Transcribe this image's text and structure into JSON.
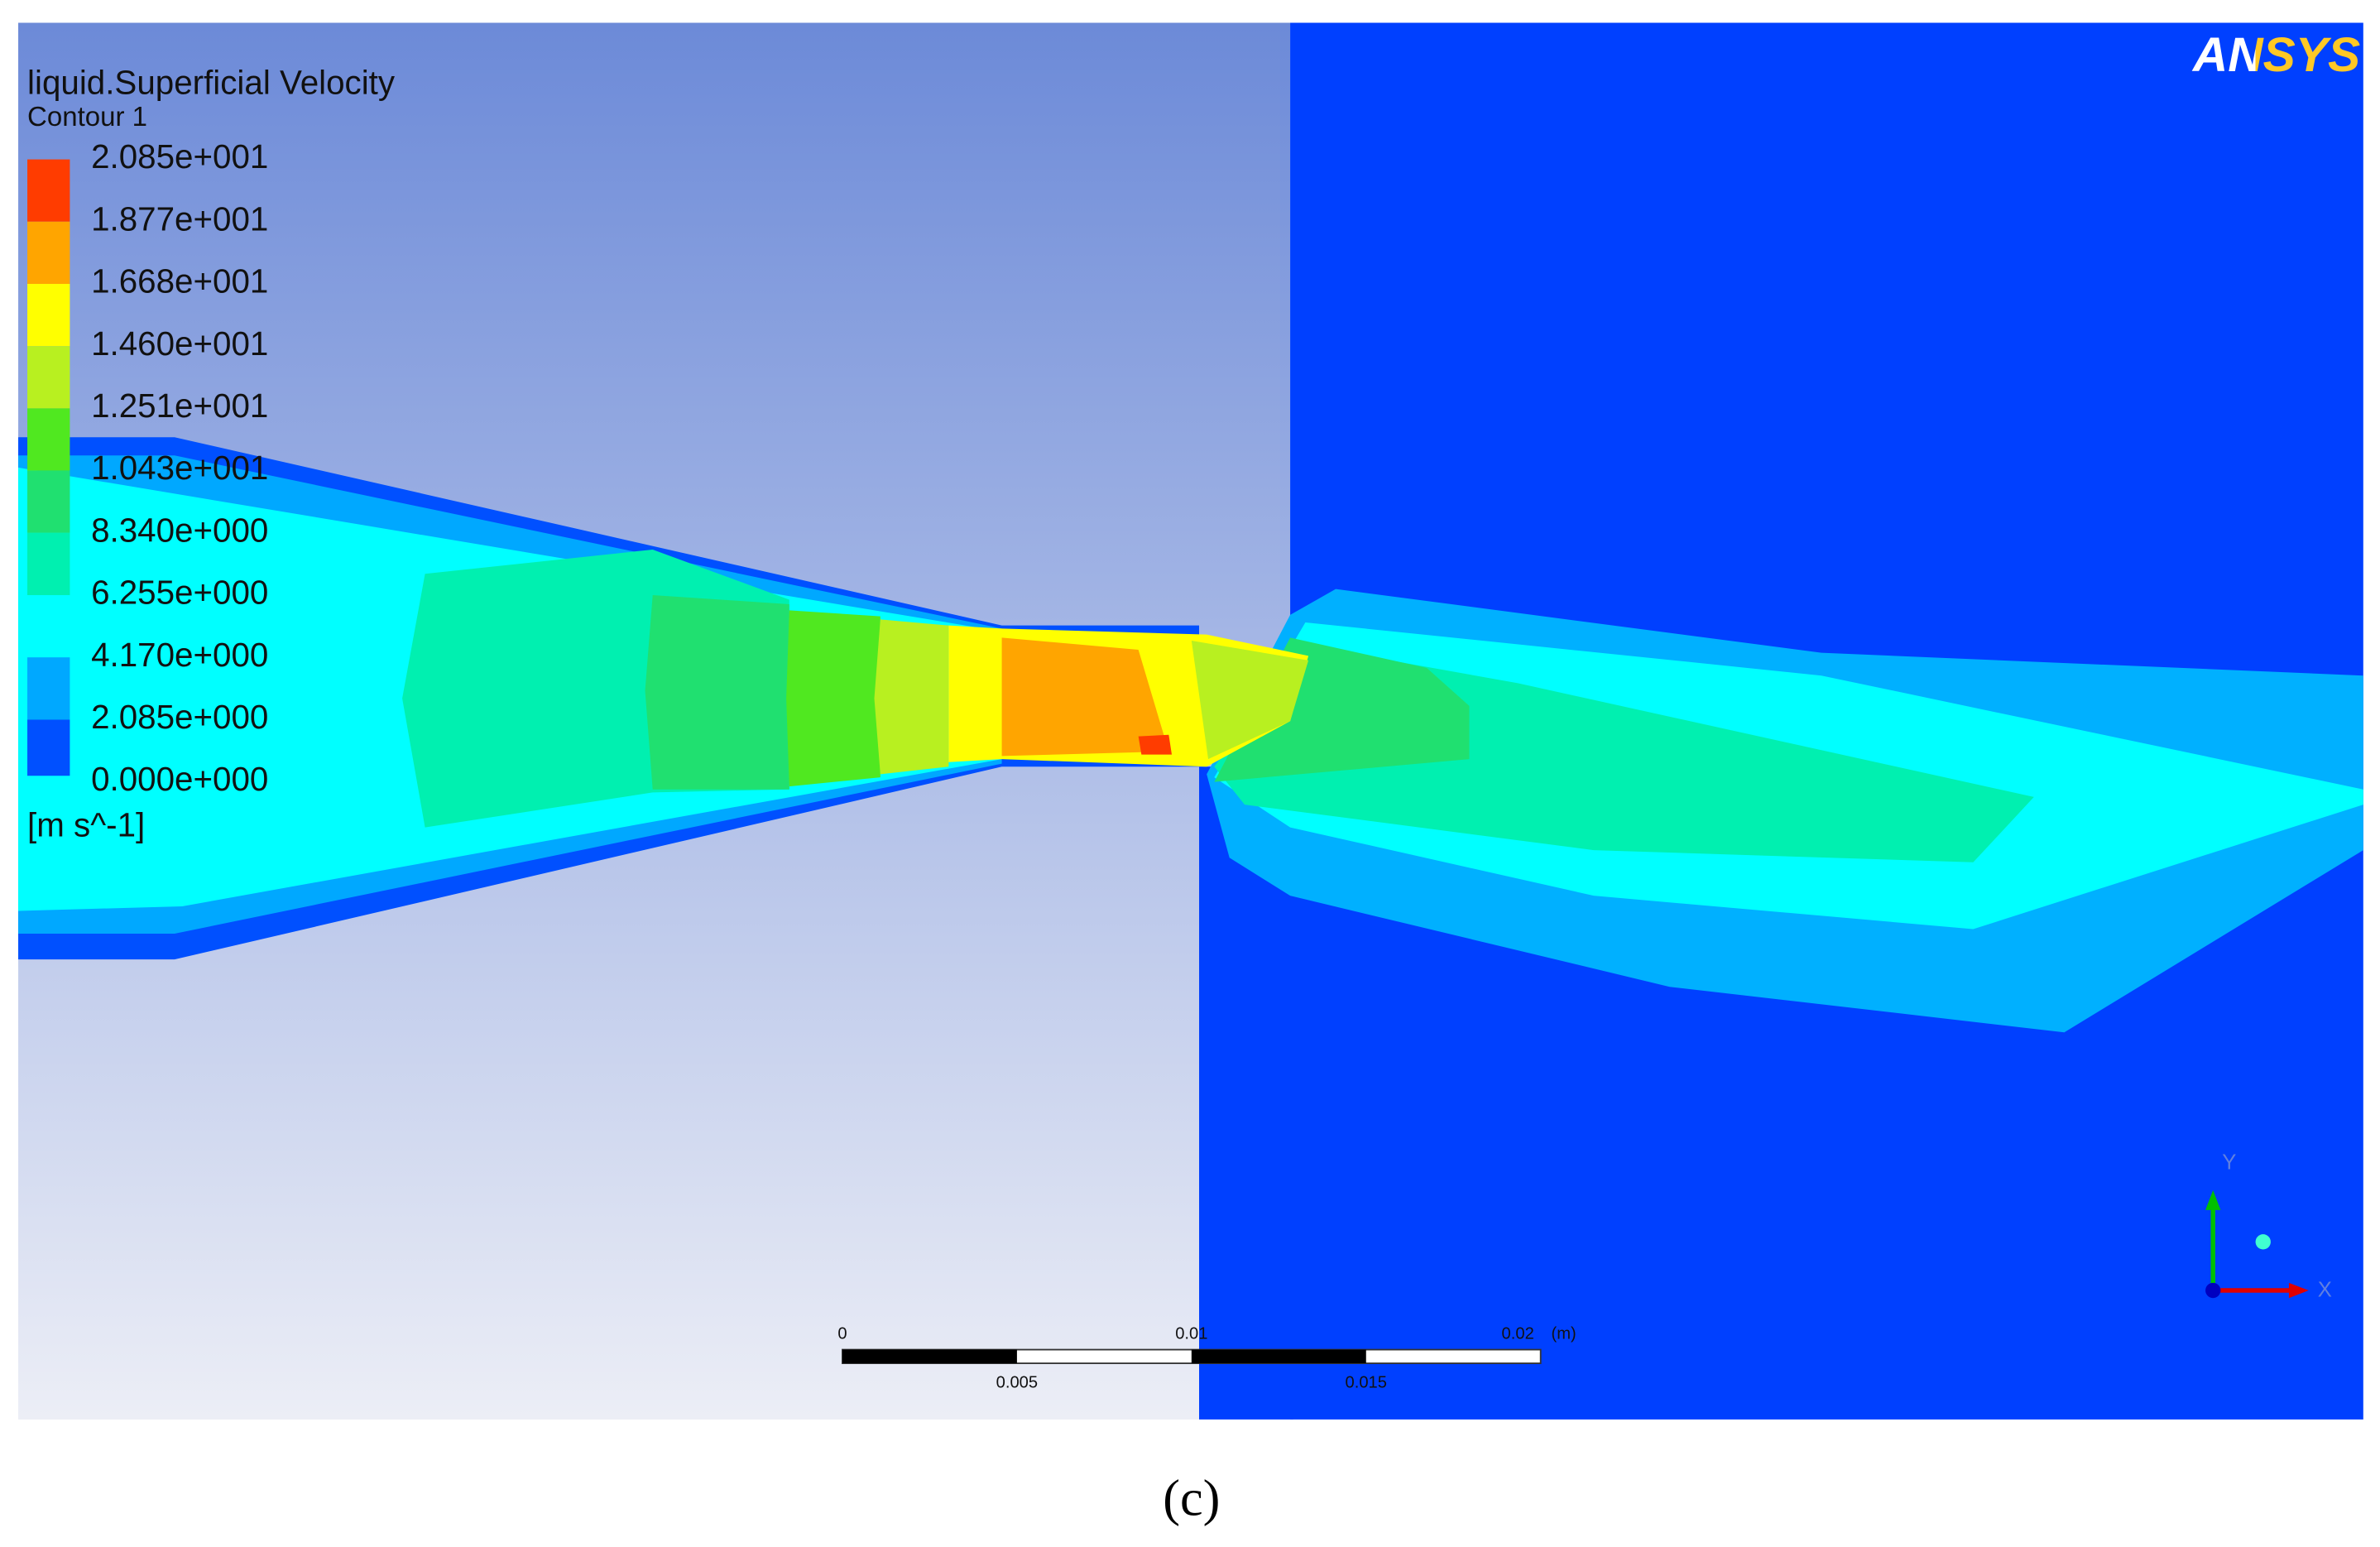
{
  "legend": {
    "title": "liquid.Superficial Velocity",
    "subtitle": "Contour 1",
    "levels": [
      "2.085e+001",
      "1.877e+001",
      "1.668e+001",
      "1.460e+001",
      "1.251e+001",
      "1.043e+001",
      "8.340e+000",
      "6.255e+000",
      "4.170e+000",
      "2.085e+000",
      "0.000e+000"
    ],
    "unit": "[m s^-1]"
  },
  "logo": "ANSYS",
  "scale_bar": {
    "labels": [
      "0",
      "0.01",
      "0.02"
    ],
    "unit": "(m)",
    "minor_labels": [
      "0.005",
      "0.015"
    ]
  },
  "axes": {
    "y": "Y",
    "x": "X"
  },
  "caption": "(c)"
}
